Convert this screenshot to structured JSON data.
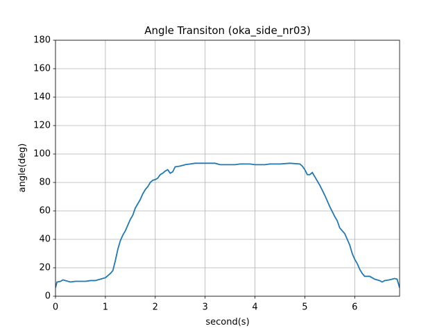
{
  "chart_data": {
    "type": "line",
    "title": "Angle Transiton (oka_side_nr03)",
    "x_label": "second(s)",
    "y_label": "angle(deg)",
    "x": [
      0,
      0.03,
      0.1,
      0.15,
      0.2,
      0.25,
      0.3,
      0.4,
      0.5,
      0.6,
      0.7,
      0.8,
      0.9,
      1.0,
      1.05,
      1.1,
      1.15,
      1.2,
      1.25,
      1.3,
      1.35,
      1.4,
      1.45,
      1.5,
      1.55,
      1.6,
      1.65,
      1.7,
      1.75,
      1.8,
      1.85,
      1.9,
      1.95,
      2.0,
      2.05,
      2.1,
      2.15,
      2.2,
      2.25,
      2.3,
      2.35,
      2.4,
      2.5,
      2.6,
      2.7,
      2.8,
      3.0,
      3.2,
      3.3,
      3.5,
      3.6,
      3.7,
      3.9,
      4.0,
      4.2,
      4.3,
      4.5,
      4.7,
      4.9,
      4.95,
      5.0,
      5.05,
      5.1,
      5.15,
      5.2,
      5.3,
      5.4,
      5.5,
      5.6,
      5.65,
      5.7,
      5.8,
      5.9,
      5.95,
      6.0,
      6.05,
      6.1,
      6.15,
      6.2,
      6.3,
      6.4,
      6.5,
      6.55,
      6.6,
      6.7,
      6.8,
      6.85,
      6.9
    ],
    "series": [
      {
        "name": "angle",
        "color": "#1f77b4",
        "values": [
          6,
          10,
          10.5,
          11.5,
          11,
          10.5,
          10,
          10.5,
          10.5,
          10.5,
          11,
          11,
          12,
          13,
          14.5,
          16,
          18,
          25,
          33,
          39,
          43,
          46,
          50,
          54,
          57,
          62,
          65,
          68,
          72,
          75,
          77,
          80,
          81.5,
          82,
          83,
          85.5,
          86.5,
          88,
          89,
          86.5,
          87.5,
          91,
          91.5,
          92.5,
          93,
          93.5,
          93.5,
          93.5,
          92.5,
          92.5,
          92.5,
          93,
          93,
          92.5,
          92.5,
          93,
          93,
          93.5,
          93,
          91.5,
          89,
          85.5,
          85.5,
          87,
          84,
          78,
          71,
          63,
          56,
          53,
          48,
          44,
          36,
          30,
          26,
          23,
          19,
          16,
          14,
          14,
          12,
          11,
          10,
          11,
          11.5,
          12.5,
          12,
          6
        ]
      }
    ],
    "xlim": [
      0,
      6.9
    ],
    "ylim": [
      0,
      180
    ],
    "xticks": [
      0,
      1,
      2,
      3,
      4,
      5,
      6
    ],
    "yticks": [
      0,
      20,
      40,
      60,
      80,
      100,
      120,
      140,
      160,
      180
    ],
    "grid": true
  }
}
